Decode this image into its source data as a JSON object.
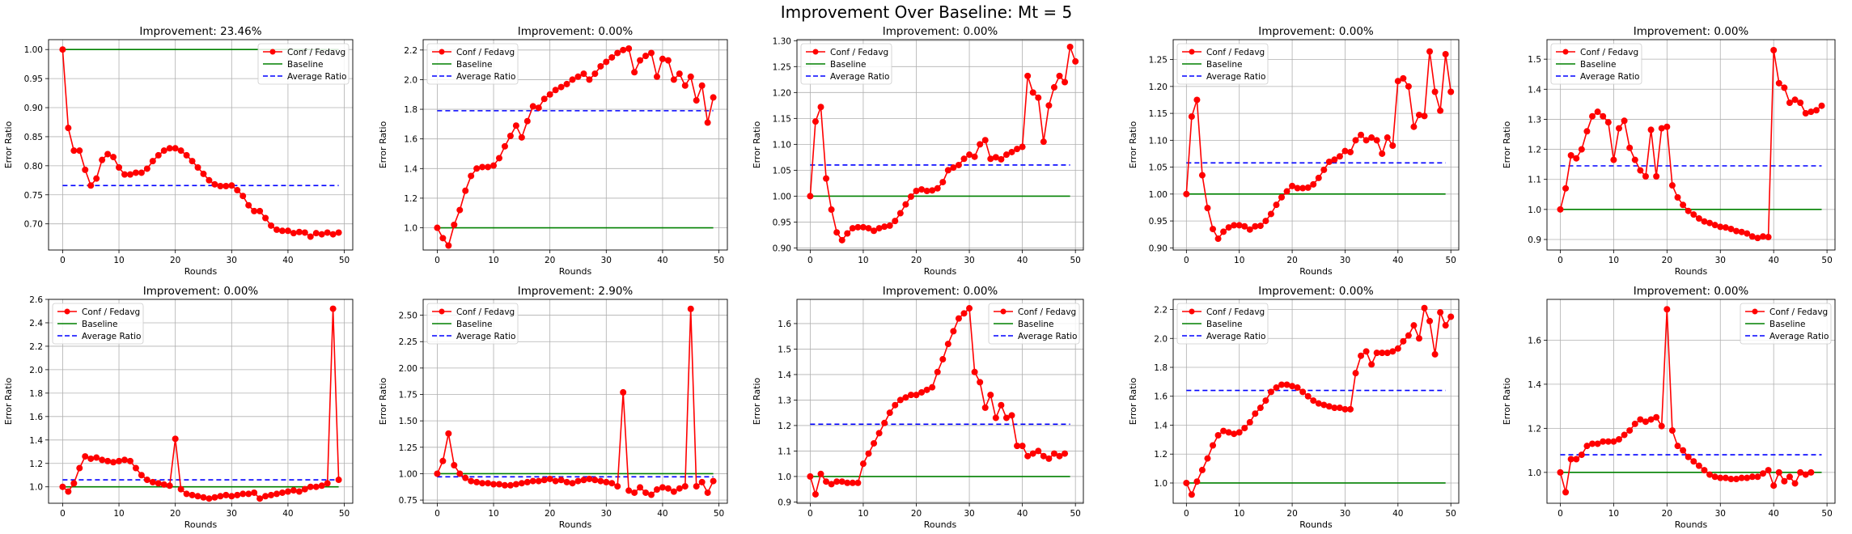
{
  "figure": {
    "suptitle": "Improvement Over Baseline: Mt = 5"
  },
  "colors": {
    "conf": "#ff0000",
    "baseline": "#008000",
    "average": "#0000ff",
    "grid": "#b0b0b0"
  },
  "chart_data": [
    {
      "type": "line",
      "title": "Improvement: 23.46%",
      "xlabel": "Rounds",
      "ylabel": "Error Ratio",
      "xlim": [
        -2.5,
        51.5
      ],
      "ylim": [
        0.655,
        1.017
      ],
      "xticks": [
        0,
        10,
        20,
        30,
        40,
        50
      ],
      "yticks": [
        0.7,
        0.75,
        0.8,
        0.85,
        0.9,
        0.95,
        1.0
      ],
      "ytick_decimals": 2,
      "legend": "upper-right",
      "series": [
        {
          "name": "Conf / Fedavg",
          "style": "marker-line",
          "values": [
            1.0,
            0.865,
            0.826,
            0.826,
            0.793,
            0.766,
            0.778,
            0.81,
            0.82,
            0.815,
            0.797,
            0.785,
            0.785,
            0.788,
            0.788,
            0.795,
            0.808,
            0.818,
            0.826,
            0.83,
            0.83,
            0.826,
            0.818,
            0.808,
            0.797,
            0.786,
            0.775,
            0.768,
            0.765,
            0.765,
            0.766,
            0.758,
            0.748,
            0.732,
            0.722,
            0.722,
            0.71,
            0.697,
            0.69,
            0.688,
            0.688,
            0.684,
            0.686,
            0.685,
            0.678,
            0.684,
            0.682,
            0.685,
            0.682,
            0.685
          ]
        },
        {
          "name": "Baseline",
          "style": "solid",
          "values": [
            1.0,
            1.0
          ]
        },
        {
          "name": "Average Ratio",
          "style": "dashed",
          "values": [
            0.766,
            0.766
          ]
        }
      ]
    },
    {
      "type": "line",
      "title": "Improvement: 0.00%",
      "xlabel": "Rounds",
      "ylabel": "Error Ratio",
      "xlim": [
        -2.5,
        51.5
      ],
      "ylim": [
        0.85,
        2.27
      ],
      "xticks": [
        0,
        10,
        20,
        30,
        40,
        50
      ],
      "yticks": [
        1.0,
        1.2,
        1.4,
        1.6,
        1.8,
        2.0,
        2.2
      ],
      "ytick_decimals": 1,
      "legend": "upper-left",
      "series": [
        {
          "name": "Conf / Fedavg",
          "style": "marker-line",
          "values": [
            1.0,
            0.93,
            0.88,
            1.02,
            1.12,
            1.25,
            1.35,
            1.4,
            1.41,
            1.41,
            1.42,
            1.47,
            1.55,
            1.62,
            1.69,
            1.61,
            1.72,
            1.82,
            1.81,
            1.87,
            1.9,
            1.93,
            1.95,
            1.97,
            2.0,
            2.02,
            2.04,
            2.0,
            2.04,
            2.09,
            2.12,
            2.15,
            2.18,
            2.2,
            2.21,
            2.05,
            2.13,
            2.16,
            2.18,
            2.02,
            2.14,
            2.13,
            2.0,
            2.04,
            1.96,
            2.02,
            1.86,
            1.96,
            1.71,
            1.88
          ]
        },
        {
          "name": "Baseline",
          "style": "solid",
          "values": [
            1.0,
            1.0
          ]
        },
        {
          "name": "Average Ratio",
          "style": "dashed",
          "values": [
            1.79,
            1.79
          ]
        }
      ]
    },
    {
      "type": "line",
      "title": "Improvement: 0.00%",
      "xlabel": "Rounds",
      "ylabel": "Error Ratio",
      "xlim": [
        -2.5,
        51.5
      ],
      "ylim": [
        0.896,
        1.302
      ],
      "xticks": [
        0,
        10,
        20,
        30,
        40,
        50
      ],
      "yticks": [
        0.9,
        0.95,
        1.0,
        1.05,
        1.1,
        1.15,
        1.2,
        1.25,
        1.3
      ],
      "ytick_decimals": 2,
      "legend": "upper-left",
      "series": [
        {
          "name": "Conf / Fedavg",
          "style": "marker-line",
          "values": [
            1.0,
            1.144,
            1.172,
            1.034,
            0.974,
            0.93,
            0.915,
            0.928,
            0.938,
            0.94,
            0.94,
            0.938,
            0.933,
            0.938,
            0.941,
            0.943,
            0.952,
            0.967,
            0.984,
            0.999,
            1.01,
            1.013,
            1.01,
            1.011,
            1.015,
            1.027,
            1.05,
            1.055,
            1.06,
            1.072,
            1.08,
            1.076,
            1.1,
            1.108,
            1.072,
            1.075,
            1.071,
            1.08,
            1.085,
            1.091,
            1.095,
            1.232,
            1.2,
            1.19,
            1.105,
            1.175,
            1.21,
            1.232,
            1.22,
            1.288,
            1.26
          ]
        },
        {
          "name": "Baseline",
          "style": "solid",
          "values": [
            1.0,
            1.0
          ]
        },
        {
          "name": "Average Ratio",
          "style": "dashed",
          "values": [
            1.06,
            1.06
          ]
        }
      ]
    },
    {
      "type": "line",
      "title": "Improvement: 0.00%",
      "xlabel": "Rounds",
      "ylabel": "Error Ratio",
      "xlim": [
        -2.5,
        51.5
      ],
      "ylim": [
        0.896,
        1.287
      ],
      "xticks": [
        0,
        10,
        20,
        30,
        40,
        50
      ],
      "yticks": [
        0.9,
        0.95,
        1.0,
        1.05,
        1.1,
        1.15,
        1.2,
        1.25
      ],
      "ytick_decimals": 2,
      "legend": "upper-left",
      "series": [
        {
          "name": "Conf / Fedavg",
          "style": "marker-line",
          "values": [
            1.0,
            1.144,
            1.175,
            1.035,
            0.974,
            0.935,
            0.917,
            0.93,
            0.938,
            0.942,
            0.942,
            0.94,
            0.934,
            0.94,
            0.941,
            0.95,
            0.963,
            0.98,
            0.994,
            1.005,
            1.015,
            1.011,
            1.011,
            1.012,
            1.018,
            1.03,
            1.045,
            1.06,
            1.064,
            1.07,
            1.08,
            1.078,
            1.1,
            1.11,
            1.1,
            1.105,
            1.1,
            1.075,
            1.105,
            1.09,
            1.21,
            1.215,
            1.2,
            1.125,
            1.147,
            1.145,
            1.265,
            1.19,
            1.155,
            1.26,
            1.19
          ]
        },
        {
          "name": "Baseline",
          "style": "solid",
          "values": [
            1.0,
            1.0
          ]
        },
        {
          "name": "Average Ratio",
          "style": "dashed",
          "values": [
            1.058,
            1.058
          ]
        }
      ]
    },
    {
      "type": "line",
      "title": "Improvement: 0.00%",
      "xlabel": "Rounds",
      "ylabel": "Error Ratio",
      "xlim": [
        -2.5,
        51.5
      ],
      "ylim": [
        0.865,
        1.565
      ],
      "xticks": [
        0,
        10,
        20,
        30,
        40,
        50
      ],
      "yticks": [
        0.9,
        1.0,
        1.1,
        1.2,
        1.3,
        1.4,
        1.5
      ],
      "ytick_decimals": 1,
      "legend": "upper-left",
      "series": [
        {
          "name": "Conf / Fedavg",
          "style": "marker-line",
          "values": [
            1.0,
            1.07,
            1.18,
            1.17,
            1.2,
            1.26,
            1.31,
            1.325,
            1.31,
            1.29,
            1.165,
            1.27,
            1.295,
            1.205,
            1.165,
            1.13,
            1.11,
            1.265,
            1.11,
            1.27,
            1.275,
            1.08,
            1.04,
            1.015,
            0.995,
            0.983,
            0.97,
            0.96,
            0.955,
            0.948,
            0.942,
            0.94,
            0.935,
            0.928,
            0.925,
            0.92,
            0.91,
            0.905,
            0.91,
            0.908,
            1.53,
            1.42,
            1.405,
            1.355,
            1.365,
            1.355,
            1.32,
            1.325,
            1.33,
            1.345
          ]
        },
        {
          "name": "Baseline",
          "style": "solid",
          "values": [
            1.0,
            1.0
          ]
        },
        {
          "name": "Average Ratio",
          "style": "dashed",
          "values": [
            1.145,
            1.145
          ]
        }
      ]
    },
    {
      "type": "line",
      "title": "Improvement: 0.00%",
      "xlabel": "Rounds",
      "ylabel": "Error Ratio",
      "xlim": [
        -2.5,
        51.5
      ],
      "ylim": [
        0.86,
        2.6
      ],
      "xticks": [
        0,
        10,
        20,
        30,
        40,
        50
      ],
      "yticks": [
        1.0,
        1.2,
        1.4,
        1.6,
        1.8,
        2.0,
        2.2,
        2.4,
        2.6
      ],
      "ytick_decimals": 1,
      "legend": "upper-left",
      "series": [
        {
          "name": "Conf / Fedavg",
          "style": "marker-line",
          "values": [
            1.0,
            0.96,
            1.03,
            1.16,
            1.26,
            1.24,
            1.25,
            1.23,
            1.22,
            1.21,
            1.22,
            1.23,
            1.22,
            1.16,
            1.1,
            1.06,
            1.04,
            1.03,
            1.02,
            1.01,
            1.41,
            0.98,
            0.94,
            0.93,
            0.92,
            0.91,
            0.9,
            0.91,
            0.92,
            0.93,
            0.92,
            0.93,
            0.94,
            0.94,
            0.95,
            0.9,
            0.92,
            0.93,
            0.94,
            0.95,
            0.96,
            0.97,
            0.96,
            0.98,
            1.0,
            1.0,
            1.01,
            1.03,
            2.52,
            1.06
          ]
        },
        {
          "name": "Baseline",
          "style": "solid",
          "values": [
            1.0,
            1.0
          ]
        },
        {
          "name": "Average Ratio",
          "style": "dashed",
          "values": [
            1.06,
            1.06
          ]
        }
      ]
    },
    {
      "type": "line",
      "title": "Improvement: 2.90%",
      "xlabel": "Rounds",
      "ylabel": "Error Ratio",
      "xlim": [
        -2.5,
        51.5
      ],
      "ylim": [
        0.72,
        2.65
      ],
      "xticks": [
        0,
        10,
        20,
        30,
        40,
        50
      ],
      "yticks": [
        0.75,
        1.0,
        1.25,
        1.5,
        1.75,
        2.0,
        2.25,
        2.5
      ],
      "ytick_decimals": 2,
      "legend": "upper-left",
      "series": [
        {
          "name": "Conf / Fedavg",
          "style": "marker-line",
          "values": [
            1.0,
            1.12,
            1.38,
            1.08,
            1.0,
            0.96,
            0.93,
            0.92,
            0.91,
            0.91,
            0.9,
            0.9,
            0.89,
            0.89,
            0.9,
            0.91,
            0.92,
            0.93,
            0.93,
            0.94,
            0.95,
            0.93,
            0.94,
            0.92,
            0.91,
            0.93,
            0.94,
            0.95,
            0.94,
            0.93,
            0.92,
            0.91,
            0.88,
            1.77,
            0.84,
            0.82,
            0.87,
            0.82,
            0.8,
            0.85,
            0.87,
            0.86,
            0.83,
            0.86,
            0.88,
            2.56,
            0.88,
            0.92,
            0.82,
            0.93
          ]
        },
        {
          "name": "Baseline",
          "style": "solid",
          "values": [
            1.0,
            1.0
          ]
        },
        {
          "name": "Average Ratio",
          "style": "dashed",
          "values": [
            0.97,
            0.97
          ]
        }
      ]
    },
    {
      "type": "line",
      "title": "Improvement: 0.00%",
      "xlabel": "Rounds",
      "ylabel": "Error Ratio",
      "xlim": [
        -2.5,
        51.5
      ],
      "ylim": [
        0.895,
        1.695
      ],
      "xticks": [
        0,
        10,
        20,
        30,
        40,
        50
      ],
      "yticks": [
        0.9,
        1.0,
        1.1,
        1.2,
        1.3,
        1.4,
        1.5,
        1.6
      ],
      "ytick_decimals": 1,
      "legend": "upper-right",
      "series": [
        {
          "name": "Conf / Fedavg",
          "style": "marker-line",
          "values": [
            1.0,
            0.93,
            1.01,
            0.98,
            0.97,
            0.98,
            0.98,
            0.975,
            0.975,
            0.975,
            1.05,
            1.09,
            1.13,
            1.17,
            1.21,
            1.25,
            1.28,
            1.3,
            1.31,
            1.32,
            1.32,
            1.33,
            1.34,
            1.35,
            1.41,
            1.46,
            1.52,
            1.57,
            1.62,
            1.64,
            1.66,
            1.41,
            1.37,
            1.27,
            1.32,
            1.23,
            1.28,
            1.23,
            1.24,
            1.12,
            1.12,
            1.08,
            1.09,
            1.1,
            1.08,
            1.07,
            1.09,
            1.08,
            1.09
          ]
        },
        {
          "name": "Baseline",
          "style": "solid",
          "values": [
            1.0,
            1.0
          ]
        },
        {
          "name": "Average Ratio",
          "style": "dashed",
          "values": [
            1.205,
            1.205
          ]
        }
      ]
    },
    {
      "type": "line",
      "title": "Improvement: 0.00%",
      "xlabel": "Rounds",
      "ylabel": "Error Ratio",
      "xlim": [
        -2.5,
        51.5
      ],
      "ylim": [
        0.86,
        2.27
      ],
      "xticks": [
        0,
        10,
        20,
        30,
        40,
        50
      ],
      "yticks": [
        1.0,
        1.2,
        1.4,
        1.6,
        1.8,
        2.0,
        2.2
      ],
      "ytick_decimals": 1,
      "legend": "upper-left",
      "series": [
        {
          "name": "Conf / Fedavg",
          "style": "marker-line",
          "values": [
            1.0,
            0.92,
            1.01,
            1.09,
            1.17,
            1.26,
            1.33,
            1.36,
            1.35,
            1.34,
            1.35,
            1.38,
            1.42,
            1.48,
            1.52,
            1.57,
            1.63,
            1.66,
            1.68,
            1.68,
            1.67,
            1.66,
            1.63,
            1.6,
            1.57,
            1.55,
            1.54,
            1.53,
            1.52,
            1.52,
            1.51,
            1.51,
            1.76,
            1.88,
            1.91,
            1.82,
            1.9,
            1.9,
            1.9,
            1.91,
            1.93,
            1.98,
            2.02,
            2.09,
            2.0,
            2.21,
            2.12,
            1.89,
            2.18,
            2.09,
            2.15
          ]
        },
        {
          "name": "Baseline",
          "style": "solid",
          "values": [
            1.0,
            1.0
          ]
        },
        {
          "name": "Average Ratio",
          "style": "dashed",
          "values": [
            1.64,
            1.64
          ]
        }
      ]
    },
    {
      "type": "line",
      "title": "Improvement: 0.00%",
      "xlabel": "Rounds",
      "ylabel": "Error Ratio",
      "xlim": [
        -2.5,
        51.5
      ],
      "ylim": [
        0.86,
        1.785
      ],
      "xticks": [
        0,
        10,
        20,
        30,
        40,
        50
      ],
      "yticks": [
        1.0,
        1.2,
        1.4,
        1.6
      ],
      "ytick_decimals": 1,
      "legend": "upper-right",
      "series": [
        {
          "name": "Conf / Fedavg",
          "style": "marker-line",
          "values": [
            1.0,
            0.91,
            1.06,
            1.06,
            1.08,
            1.12,
            1.13,
            1.13,
            1.14,
            1.14,
            1.14,
            1.15,
            1.17,
            1.19,
            1.22,
            1.24,
            1.23,
            1.24,
            1.25,
            1.21,
            1.74,
            1.19,
            1.12,
            1.1,
            1.07,
            1.05,
            1.03,
            1.01,
            0.99,
            0.98,
            0.975,
            0.975,
            0.97,
            0.97,
            0.975,
            0.975,
            0.98,
            0.98,
            0.995,
            1.01,
            0.94,
            1.0,
            0.96,
            0.98,
            0.95,
            1.0,
            0.99,
            1.0
          ]
        },
        {
          "name": "Baseline",
          "style": "solid",
          "values": [
            1.0,
            1.0
          ]
        },
        {
          "name": "Average Ratio",
          "style": "dashed",
          "values": [
            1.08,
            1.08
          ]
        }
      ]
    }
  ]
}
